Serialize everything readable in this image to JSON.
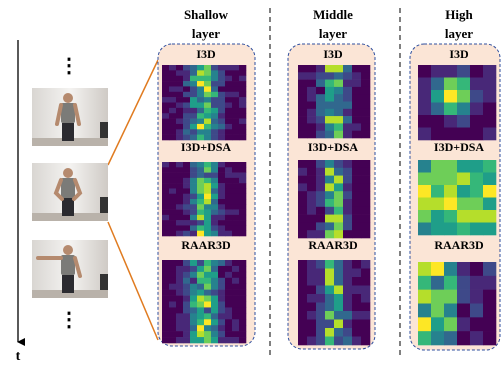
{
  "time_label": "t",
  "ellipsis": "⋮",
  "columns": [
    {
      "title_lines": [
        "Shallow",
        "layer"
      ],
      "rows": [
        "I3D",
        "I3D+DSA",
        "RAAR3D"
      ]
    },
    {
      "title_lines": [
        "Middle",
        "layer"
      ],
      "rows": [
        "I3D",
        "I3D+DSA",
        "RAAR3D"
      ]
    },
    {
      "title_lines": [
        "High",
        "layer"
      ],
      "rows": [
        "I3D",
        "I3D+DSA",
        "RAAR3D"
      ]
    }
  ]
}
